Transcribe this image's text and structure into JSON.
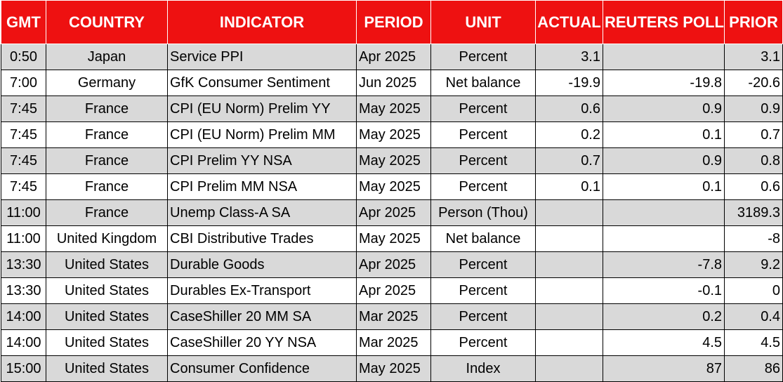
{
  "headers": {
    "gmt": "GMT",
    "country": "COUNTRY",
    "indicator": "INDICATOR",
    "period": "PERIOD",
    "unit": "UNIT",
    "actual": "ACTUAL",
    "poll": "REUTERS POLL",
    "prior": "PRIOR"
  },
  "colors": {
    "header_bg": "#ee1111",
    "header_text": "#ffffff",
    "row_shade": "#d9d9d9",
    "row_plain": "#ffffff"
  },
  "rows": [
    {
      "gmt": "0:50",
      "country": "Japan",
      "indicator": "Service PPI",
      "period": "Apr 2025",
      "unit": "Percent",
      "actual": "3.1",
      "poll": "",
      "prior": "3.1"
    },
    {
      "gmt": "7:00",
      "country": "Germany",
      "indicator": "GfK Consumer Sentiment",
      "period": "Jun 2025",
      "unit": "Net balance",
      "actual": "-19.9",
      "poll": "-19.8",
      "prior": "-20.6"
    },
    {
      "gmt": "7:45",
      "country": "France",
      "indicator": "CPI (EU Norm) Prelim YY",
      "period": "May 2025",
      "unit": "Percent",
      "actual": "0.6",
      "poll": "0.9",
      "prior": "0.9"
    },
    {
      "gmt": "7:45",
      "country": "France",
      "indicator": "CPI (EU Norm) Prelim MM",
      "period": "May 2025",
      "unit": "Percent",
      "actual": "0.2",
      "poll": "0.1",
      "prior": "0.7"
    },
    {
      "gmt": "7:45",
      "country": "France",
      "indicator": "CPI Prelim YY NSA",
      "period": "May 2025",
      "unit": "Percent",
      "actual": "0.7",
      "poll": "0.9",
      "prior": "0.8"
    },
    {
      "gmt": "7:45",
      "country": "France",
      "indicator": "CPI Prelim MM NSA",
      "period": "May 2025",
      "unit": "Percent",
      "actual": "0.1",
      "poll": "0.1",
      "prior": "0.6"
    },
    {
      "gmt": "11:00",
      "country": "France",
      "indicator": "Unemp Class-A SA",
      "period": "Apr 2025",
      "unit": "Person (Thou)",
      "actual": "",
      "poll": "",
      "prior": "3189.3"
    },
    {
      "gmt": "11:00",
      "country": "United Kingdom",
      "indicator": "CBI Distributive Trades",
      "period": "May 2025",
      "unit": "Net balance",
      "actual": "",
      "poll": "",
      "prior": "-8"
    },
    {
      "gmt": "13:30",
      "country": "United States",
      "indicator": "Durable Goods",
      "period": "Apr 2025",
      "unit": "Percent",
      "actual": "",
      "poll": "-7.8",
      "prior": "9.2"
    },
    {
      "gmt": "13:30",
      "country": "United States",
      "indicator": "Durables Ex-Transport",
      "period": "Apr 2025",
      "unit": "Percent",
      "actual": "",
      "poll": "-0.1",
      "prior": "0"
    },
    {
      "gmt": "14:00",
      "country": "United States",
      "indicator": "CaseShiller 20 MM SA",
      "period": "Mar 2025",
      "unit": "Percent",
      "actual": "",
      "poll": "0.2",
      "prior": "0.4"
    },
    {
      "gmt": "14:00",
      "country": "United States",
      "indicator": "CaseShiller 20 YY NSA",
      "period": "Mar 2025",
      "unit": "Percent",
      "actual": "",
      "poll": "4.5",
      "prior": "4.5"
    },
    {
      "gmt": "15:00",
      "country": "United States",
      "indicator": "Consumer Confidence",
      "period": "May 2025",
      "unit": "Index",
      "actual": "",
      "poll": "87",
      "prior": "86"
    }
  ]
}
